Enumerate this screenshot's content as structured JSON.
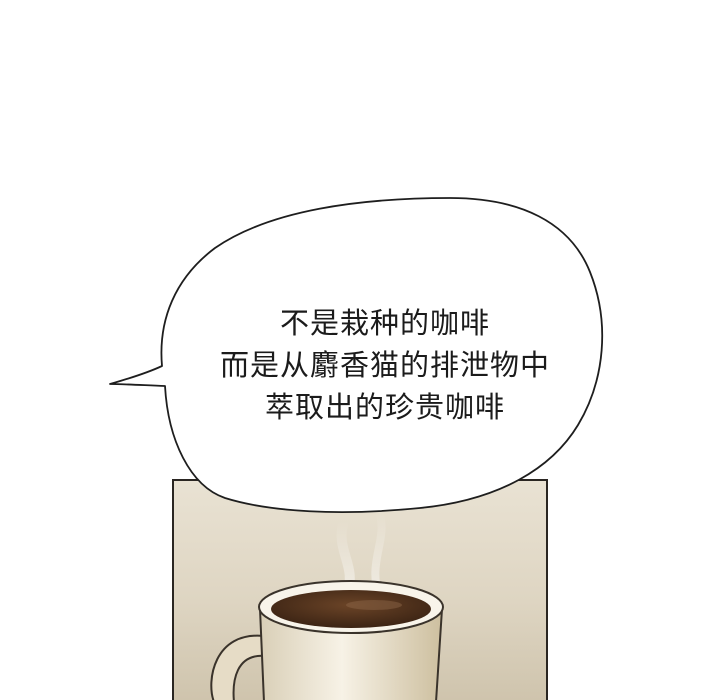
{
  "speech_bubble": {
    "lines": [
      "不是栽种的咖啡",
      "而是从麝香猫的排泄物中",
      "萃取出的珍贵咖啡"
    ]
  },
  "colors": {
    "background": "#ffffff",
    "panel_border": "#2a2622",
    "coffee": "#4a2c18",
    "cup": "#f4efe2"
  }
}
